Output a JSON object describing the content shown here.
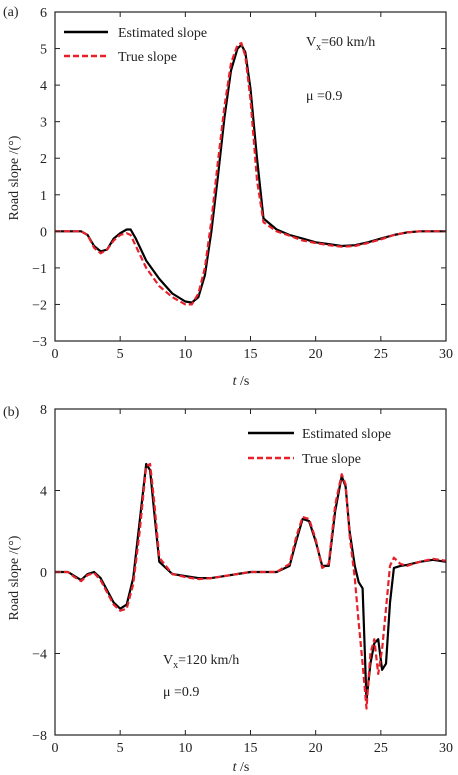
{
  "colors": {
    "estimated": "#000000",
    "true": "#e8202a",
    "axis": "#222222"
  },
  "chart_data": [
    {
      "type": "line",
      "panel_label": "(a)",
      "xlabel_italic": "t",
      "xlabel_unit": " /s",
      "ylabel": "Road slope /(°)",
      "xlim": [
        0,
        30
      ],
      "ylim": [
        -3,
        6
      ],
      "xticks": [
        0,
        5,
        10,
        15,
        20,
        25,
        30
      ],
      "yticks": [
        -3,
        -2,
        -1,
        0,
        1,
        2,
        3,
        4,
        5,
        6
      ],
      "annotations": {
        "speed_base": "V",
        "speed_sub": "x",
        "speed_rest": "=60 km/h",
        "mu": "μ =0.9"
      },
      "legend_position": "top-left",
      "series": [
        {
          "name": "Estimated slope",
          "style": "solid",
          "x": [
            0,
            1,
            2,
            2.5,
            3,
            3.5,
            4,
            4.5,
            5,
            5.5,
            5.8,
            6.2,
            7,
            8,
            9,
            10,
            10.5,
            11,
            11.5,
            12,
            12.5,
            13,
            13.5,
            14,
            14.3,
            14.6,
            15,
            15.5,
            16,
            17,
            18,
            19,
            20,
            21,
            22,
            23,
            24,
            25,
            26,
            27,
            28,
            29,
            30
          ],
          "y": [
            0,
            0,
            0,
            -0.1,
            -0.4,
            -0.55,
            -0.5,
            -0.2,
            -0.05,
            0.05,
            0.05,
            -0.2,
            -0.8,
            -1.3,
            -1.7,
            -1.92,
            -1.95,
            -1.8,
            -1.2,
            0,
            1.5,
            3.1,
            4.4,
            5.0,
            5.1,
            4.9,
            3.9,
            2.0,
            0.35,
            0.05,
            -0.1,
            -0.2,
            -0.3,
            -0.35,
            -0.4,
            -0.38,
            -0.3,
            -0.2,
            -0.1,
            -0.03,
            0,
            0,
            0
          ]
        },
        {
          "name": "True slope",
          "style": "dashed",
          "x": [
            0,
            1,
            2,
            2.5,
            3,
            3.5,
            4,
            4.5,
            5,
            5.5,
            5.8,
            6.2,
            7,
            8,
            9,
            10,
            10.5,
            11,
            11.5,
            12,
            12.5,
            13,
            13.5,
            14,
            14.3,
            14.6,
            15,
            15.5,
            16,
            17,
            18,
            19,
            20,
            21,
            22,
            23,
            24,
            25,
            26,
            27,
            28,
            29,
            30
          ],
          "y": [
            0,
            0,
            0,
            -0.1,
            -0.45,
            -0.6,
            -0.5,
            -0.25,
            -0.1,
            -0.05,
            -0.1,
            -0.4,
            -1.0,
            -1.5,
            -1.8,
            -2.0,
            -2.0,
            -1.7,
            -1.0,
            0.3,
            1.9,
            3.4,
            4.6,
            5.1,
            5.15,
            4.8,
            3.6,
            1.4,
            0.25,
            0.0,
            -0.12,
            -0.25,
            -0.32,
            -0.38,
            -0.42,
            -0.4,
            -0.32,
            -0.22,
            -0.1,
            -0.03,
            0,
            0,
            0
          ]
        }
      ]
    },
    {
      "type": "line",
      "panel_label": "(b)",
      "xlabel_italic": "t",
      "xlabel_unit": " /s",
      "ylabel": "Road slope /(°)",
      "xlim": [
        0,
        30
      ],
      "ylim": [
        -8,
        8
      ],
      "xticks": [
        0,
        5,
        10,
        15,
        20,
        25,
        30
      ],
      "yticks": [
        -8,
        -4,
        0,
        4,
        8
      ],
      "annotations": {
        "speed_base": "V",
        "speed_sub": "x",
        "speed_rest": "=120 km/h",
        "mu": "μ =0.9"
      },
      "legend_position": "top-right",
      "series": [
        {
          "name": "Estimated slope",
          "style": "solid",
          "x": [
            0,
            1,
            1.5,
            2,
            2.5,
            3,
            3.5,
            4,
            4.5,
            5,
            5.5,
            6,
            6.5,
            7,
            7.3,
            7.6,
            8,
            9,
            10,
            11,
            12,
            13,
            14,
            15,
            16,
            17,
            18,
            18.5,
            19,
            19.5,
            20,
            20.5,
            21,
            21.5,
            22,
            22.3,
            22.6,
            23,
            23.3,
            23.6,
            23.9,
            24.2,
            24.5,
            24.8,
            25.1,
            25.4,
            25.7,
            26,
            26.5,
            27,
            28,
            29,
            30
          ],
          "y": [
            0,
            0,
            -0.2,
            -0.4,
            -0.1,
            0,
            -0.3,
            -0.9,
            -1.5,
            -1.8,
            -1.6,
            -0.3,
            2.5,
            5.3,
            5.0,
            3.0,
            0.5,
            -0.1,
            -0.2,
            -0.3,
            -0.3,
            -0.2,
            -0.1,
            0,
            0,
            0,
            0.3,
            1.5,
            2.6,
            2.5,
            1.5,
            0.3,
            0.3,
            3.0,
            4.7,
            4.2,
            2.0,
            0.3,
            -0.5,
            -0.8,
            -6.3,
            -4.5,
            -3.5,
            -3.3,
            -4.8,
            -4.5,
            -1.5,
            0.2,
            0.3,
            0.35,
            0.5,
            0.6,
            0.5
          ]
        },
        {
          "name": "True slope",
          "style": "dashed",
          "x": [
            0,
            1,
            1.5,
            2,
            2.5,
            3,
            3.5,
            4,
            4.5,
            5,
            5.5,
            6,
            6.5,
            7,
            7.3,
            7.6,
            8,
            9,
            10,
            11,
            12,
            13,
            14,
            15,
            16,
            17,
            18,
            18.5,
            19,
            19.5,
            20,
            20.5,
            21,
            21.5,
            22,
            22.3,
            22.6,
            23,
            23.3,
            23.6,
            23.9,
            24.2,
            24.5,
            24.8,
            25.1,
            25.4,
            25.7,
            26,
            26.5,
            27,
            28,
            29,
            30
          ],
          "y": [
            0,
            0,
            -0.25,
            -0.45,
            -0.15,
            -0.05,
            -0.4,
            -1.0,
            -1.6,
            -1.9,
            -1.8,
            -0.6,
            2.0,
            5.2,
            5.3,
            3.5,
            0.7,
            -0.1,
            -0.25,
            -0.35,
            -0.3,
            -0.2,
            -0.1,
            0,
            0,
            0,
            0.4,
            1.7,
            2.7,
            2.6,
            1.6,
            0.2,
            0.4,
            3.3,
            4.8,
            4.3,
            1.8,
            -0.3,
            -2.5,
            -4.5,
            -6.7,
            -4.0,
            -3.3,
            -5.0,
            -3.8,
            -1.8,
            0.3,
            0.7,
            0.4,
            0.3,
            0.5,
            0.65,
            0.55
          ]
        }
      ]
    }
  ]
}
